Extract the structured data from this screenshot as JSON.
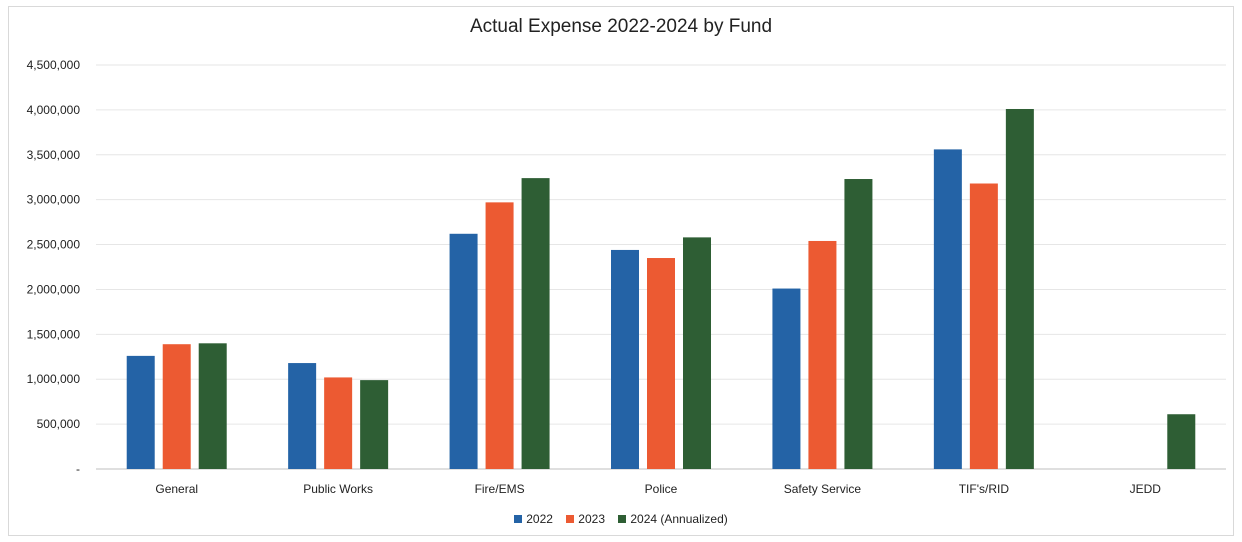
{
  "chart_data": {
    "type": "bar",
    "title": "Actual Expense 2022-2024 by Fund",
    "xlabel": "",
    "ylabel": "",
    "ylim": [
      0,
      4500000
    ],
    "yticks": [
      0,
      500000,
      1000000,
      1500000,
      2000000,
      2500000,
      3000000,
      3500000,
      4000000,
      4500000
    ],
    "ytick_labels": [
      "-",
      "500,000",
      "1,000,000",
      "1,500,000",
      "2,000,000",
      "2,500,000",
      "3,000,000",
      "3,500,000",
      "4,000,000",
      "4,500,000"
    ],
    "grid": true,
    "legend_position": "bottom",
    "categories": [
      "General",
      "Public Works",
      "Fire/EMS",
      "Police",
      "Safety Service",
      "TIF's/RID",
      "JEDD"
    ],
    "series": [
      {
        "name": "2022",
        "color": "#2463a6",
        "values": [
          1260000,
          1180000,
          2620000,
          2440000,
          2010000,
          3560000,
          0
        ]
      },
      {
        "name": "2023",
        "color": "#ec5a32",
        "values": [
          1390000,
          1020000,
          2970000,
          2350000,
          2540000,
          3180000,
          0
        ]
      },
      {
        "name": "2024 (Annualized)",
        "color": "#2e5e34",
        "values": [
          1400000,
          990000,
          3240000,
          2580000,
          3230000,
          4010000,
          610000
        ]
      }
    ]
  }
}
